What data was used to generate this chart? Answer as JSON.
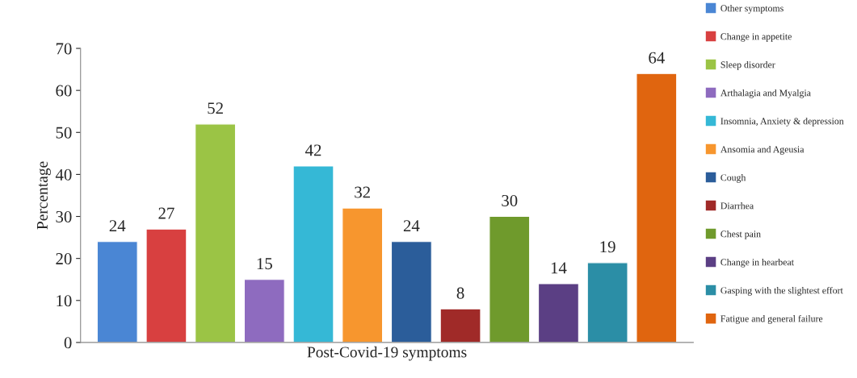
{
  "chart_data": {
    "type": "bar",
    "categories": [
      "Post-Covid-19 symptoms"
    ],
    "ylabel": "Percentage",
    "ylim": [
      0,
      70
    ],
    "yticks": [
      0,
      10,
      20,
      30,
      40,
      50,
      60,
      70
    ],
    "grid": false,
    "legend": "right",
    "data_labels": true,
    "series": [
      {
        "name": "Other symptoms",
        "color": "#4a86d4",
        "values": [
          24
        ]
      },
      {
        "name": "Change in appetite",
        "color": "#d84040",
        "values": [
          27
        ]
      },
      {
        "name": "Sleep disorder",
        "color": "#9bc445",
        "values": [
          52
        ]
      },
      {
        "name": "Arthalagia and Myalgia",
        "color": "#8e6bbf",
        "values": [
          15
        ]
      },
      {
        "name": "Insomnia, Anxiety & depression",
        "color": "#35b8d6",
        "values": [
          42
        ]
      },
      {
        "name": "Ansomia and Ageusia",
        "color": "#f7962e",
        "values": [
          32
        ]
      },
      {
        "name": "Cough",
        "color": "#2b5d9a",
        "values": [
          24
        ]
      },
      {
        "name": "Diarrhea",
        "color": "#a02a28",
        "values": [
          8
        ]
      },
      {
        "name": "Chest pain",
        "color": "#6f9a2c",
        "values": [
          30
        ]
      },
      {
        "name": "Change in hearbeat",
        "color": "#5b3f84",
        "values": [
          14
        ]
      },
      {
        "name": "Gasping with the slightest effort",
        "color": "#2b8ea6",
        "values": [
          19
        ]
      },
      {
        "name": "Fatigue and general failure",
        "color": "#e0650f",
        "values": [
          64
        ]
      }
    ]
  }
}
